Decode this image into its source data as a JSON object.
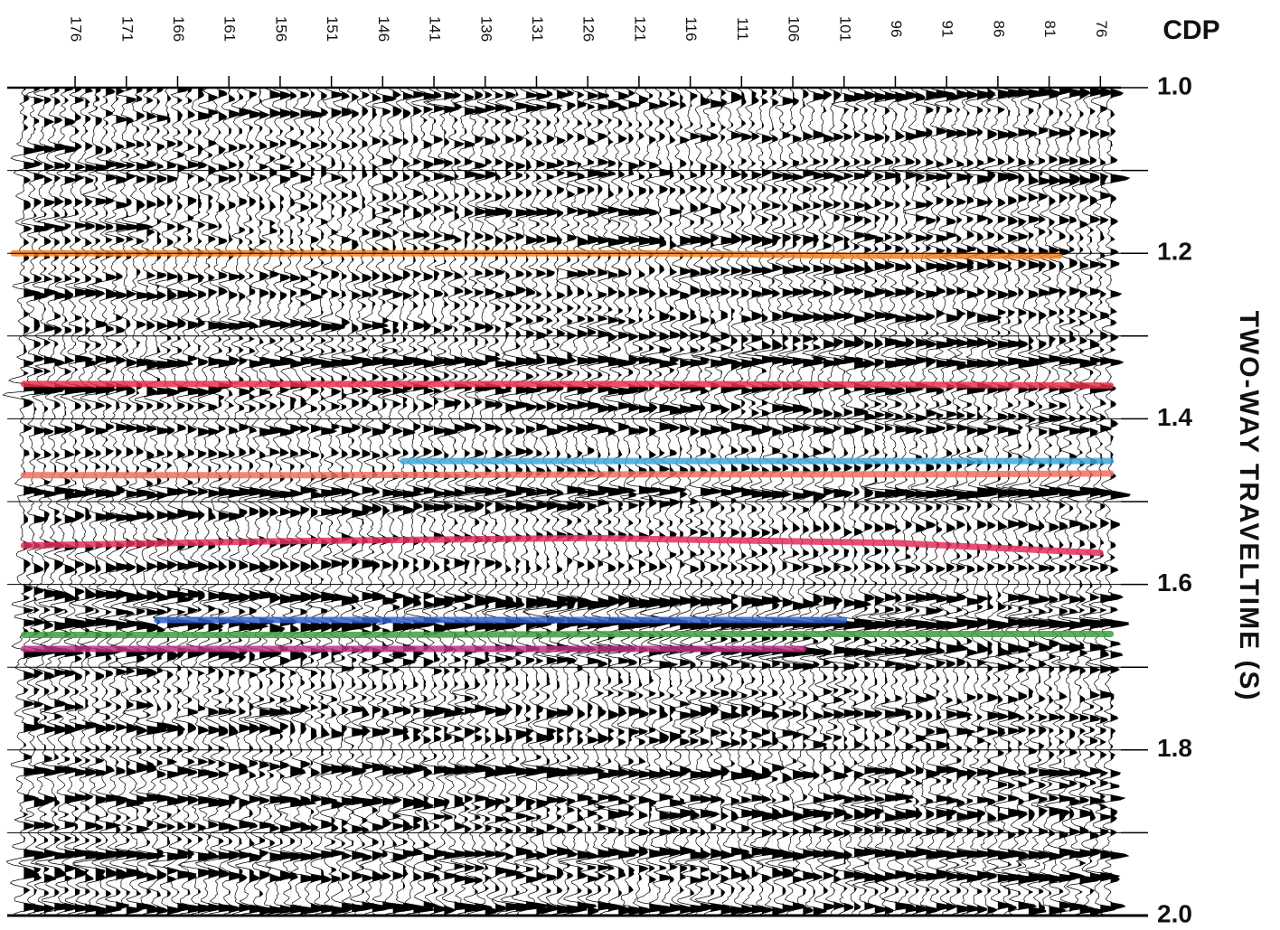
{
  "chart_data": {
    "type": "seismic",
    "xlabel": "CDP",
    "ylabel": "TWO-WAY TRAVELTIME (S)",
    "xlim": [
      182,
      74
    ],
    "xticks": [
      176,
      171,
      166,
      161,
      156,
      151,
      146,
      141,
      136,
      131,
      126,
      121,
      116,
      111,
      106,
      101,
      96,
      91,
      86,
      81,
      76
    ],
    "ylim": [
      1.0,
      2.0
    ],
    "yticks": [
      {
        "value": 1.0,
        "label": "1.0"
      },
      {
        "value": 1.2,
        "label": "1.2"
      },
      {
        "value": 1.4,
        "label": "1.4"
      },
      {
        "value": 1.6,
        "label": "1.6"
      },
      {
        "value": 1.8,
        "label": "1.8"
      },
      {
        "value": 2.0,
        "label": "2.0"
      }
    ],
    "minor_yticks": [
      1.1,
      1.3,
      1.5,
      1.7,
      1.9
    ],
    "grid": true,
    "series": [
      {
        "color": "#f08020",
        "x": [
          182,
          160,
          140,
          120,
          100,
          80
        ],
        "values": [
          1.2,
          1.2,
          1.2,
          1.2,
          1.203,
          1.203
        ]
      },
      {
        "color": "#e8304a",
        "x": [
          181,
          150,
          120,
          90,
          75
        ],
        "values": [
          1.358,
          1.358,
          1.358,
          1.359,
          1.36
        ]
      },
      {
        "color": "#40a8d8",
        "x": [
          144,
          120,
          100,
          75
        ],
        "values": [
          1.451,
          1.451,
          1.451,
          1.451
        ]
      },
      {
        "color": "#f07060",
        "x": [
          181,
          150,
          120,
          90,
          75
        ],
        "values": [
          1.468,
          1.468,
          1.467,
          1.467,
          1.466
        ]
      },
      {
        "color": "#e0305a",
        "x": [
          181,
          157,
          126,
          96,
          76
        ],
        "values": [
          1.553,
          1.548,
          1.544,
          1.55,
          1.562
        ]
      },
      {
        "color": "#3060d0",
        "x": [
          168,
          140,
          120,
          101
        ],
        "values": [
          1.643,
          1.643,
          1.643,
          1.643
        ]
      },
      {
        "color": "#40a040",
        "x": [
          181,
          150,
          120,
          90,
          75
        ],
        "values": [
          1.661,
          1.661,
          1.66,
          1.66,
          1.66
        ]
      },
      {
        "color": "#c03080",
        "x": [
          181,
          150,
          120,
          105
        ],
        "values": [
          1.678,
          1.678,
          1.678,
          1.678
        ]
      }
    ]
  }
}
